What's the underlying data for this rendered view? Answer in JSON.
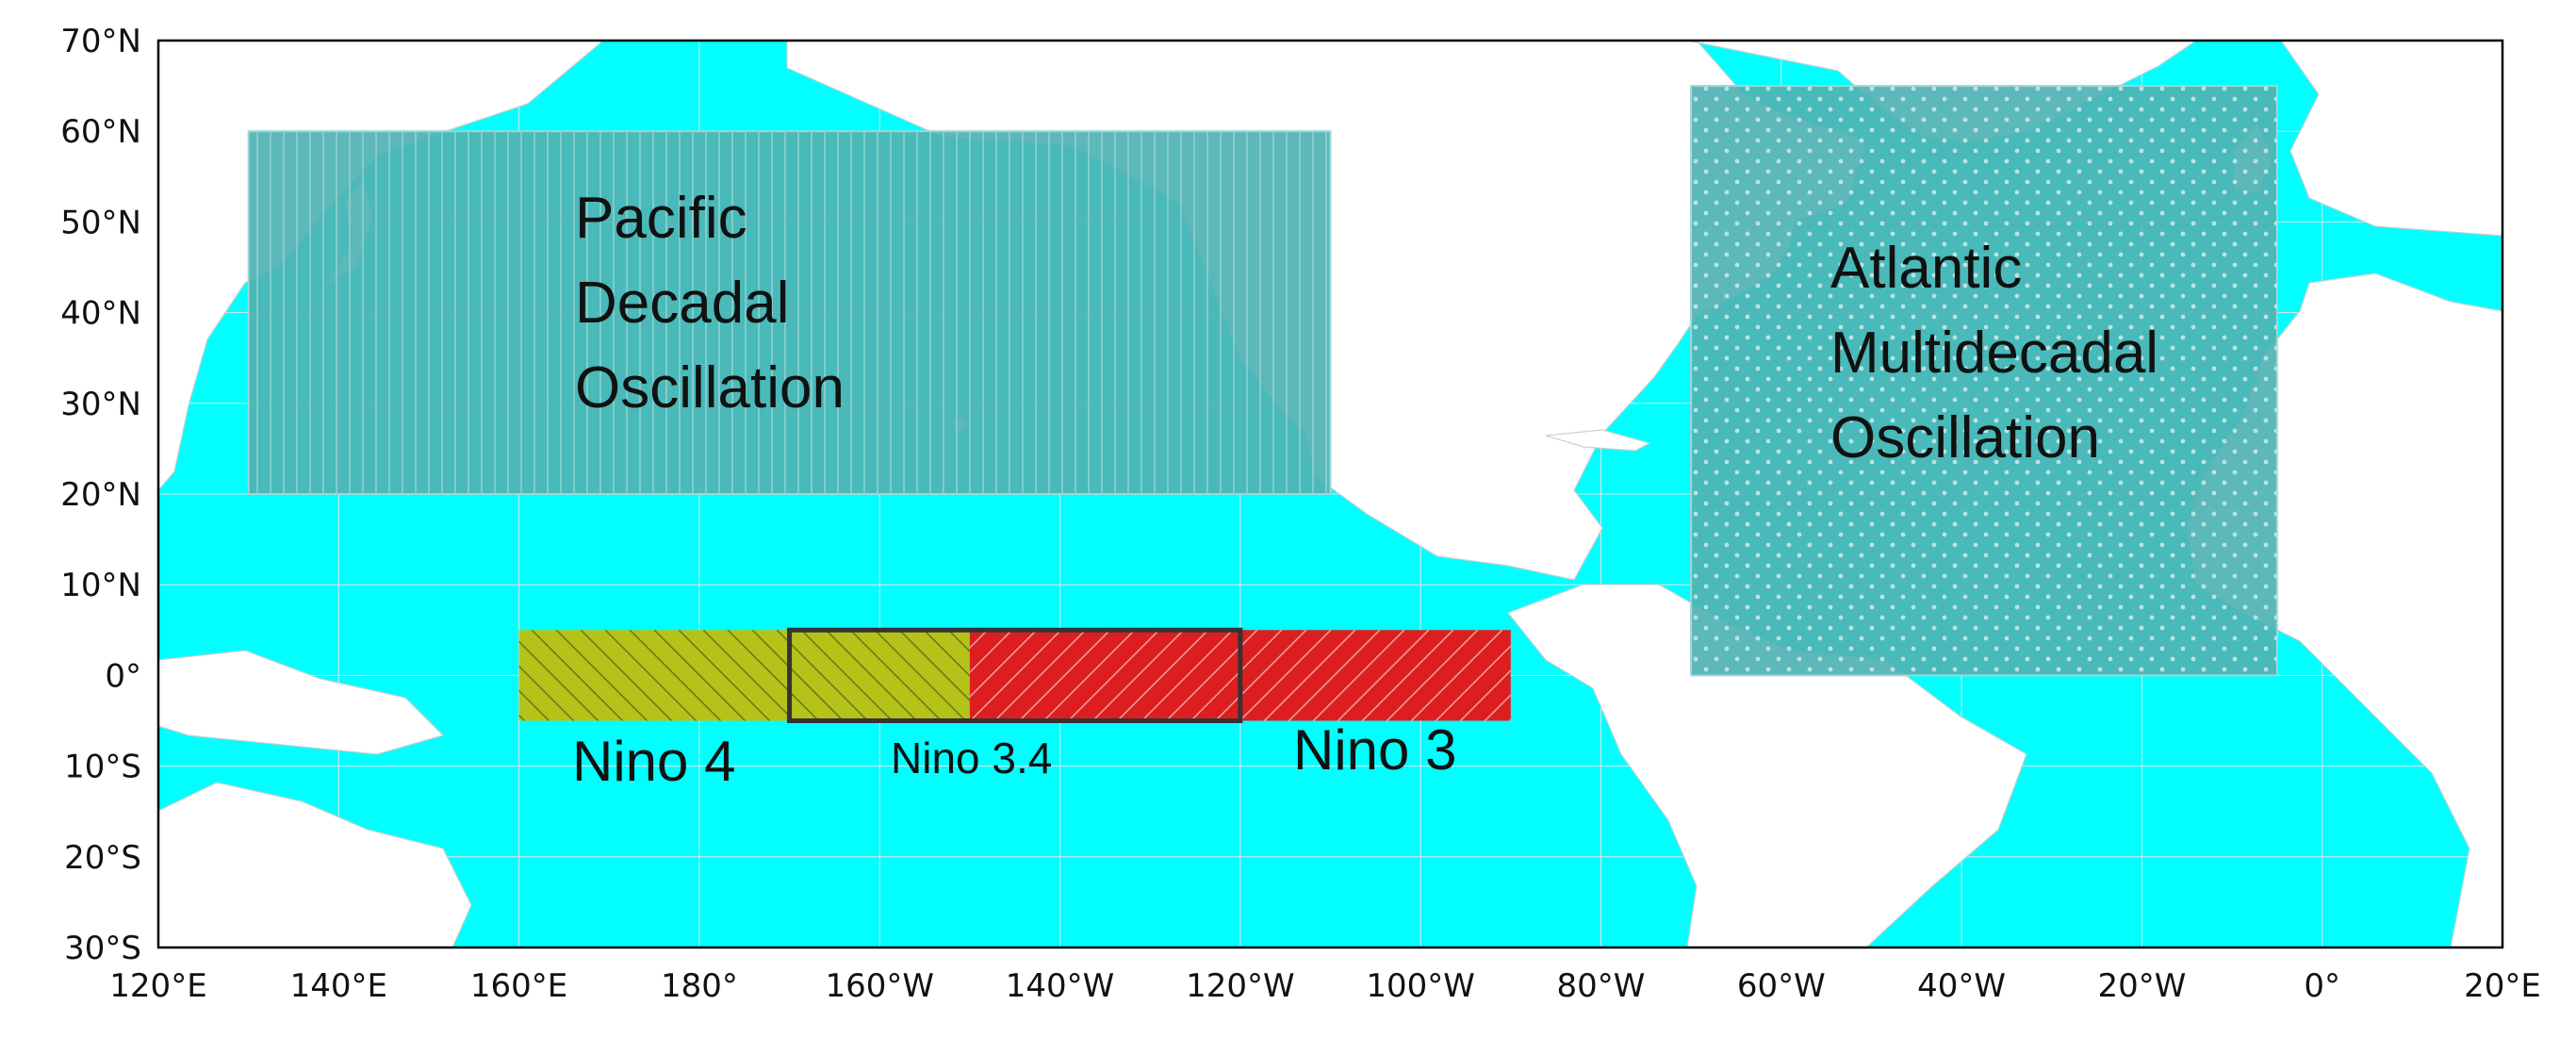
{
  "map": {
    "lon_range": [
      120,
      380
    ],
    "lat_range": [
      -30,
      70
    ],
    "colors": {
      "ocean": "#00ffff",
      "land": "#ffffff",
      "border": "#cfcfcf",
      "grid": "#e5e5e5",
      "pdo": "#4fb3b3",
      "amo": "#4fb3b3",
      "nino4": "#b5c21a",
      "nino3": "#dc1e1e",
      "nino34_outline": "#333333",
      "frame": "#000000"
    },
    "lon_ticks": [
      {
        "value": 120,
        "label": "120°E"
      },
      {
        "value": 140,
        "label": "140°E"
      },
      {
        "value": 160,
        "label": "160°E"
      },
      {
        "value": 180,
        "label": "180°"
      },
      {
        "value": 200,
        "label": "160°W"
      },
      {
        "value": 220,
        "label": "140°W"
      },
      {
        "value": 240,
        "label": "120°W"
      },
      {
        "value": 260,
        "label": "100°W"
      },
      {
        "value": 280,
        "label": "80°W"
      },
      {
        "value": 300,
        "label": "60°W"
      },
      {
        "value": 320,
        "label": "40°W"
      },
      {
        "value": 340,
        "label": "20°W"
      },
      {
        "value": 360,
        "label": "0°"
      },
      {
        "value": 380,
        "label": "20°E"
      }
    ],
    "lat_ticks": [
      {
        "value": 70,
        "label": "70°N"
      },
      {
        "value": 60,
        "label": "60°N"
      },
      {
        "value": 50,
        "label": "50°N"
      },
      {
        "value": 40,
        "label": "40°N"
      },
      {
        "value": 30,
        "label": "30°N"
      },
      {
        "value": 20,
        "label": "20°N"
      },
      {
        "value": 10,
        "label": "10°N"
      },
      {
        "value": 0,
        "label": "0°"
      },
      {
        "value": -10,
        "label": "10°S"
      },
      {
        "value": -20,
        "label": "20°S"
      },
      {
        "value": -30,
        "label": "30°S"
      }
    ],
    "regions": [
      {
        "id": "pdo",
        "lines": [
          "Pacific",
          "Decadal",
          "Oscillation"
        ],
        "lon": [
          130,
          250
        ],
        "lat": [
          20,
          60
        ],
        "pattern": "vertical-lines"
      },
      {
        "id": "amo",
        "lines": [
          "Atlantic",
          "Multidecadal",
          "Oscillation"
        ],
        "lon": [
          290,
          355
        ],
        "lat": [
          0,
          65
        ],
        "pattern": "dots"
      },
      {
        "id": "nino4",
        "lines": [
          "Nino 4"
        ],
        "lon": [
          160,
          210
        ],
        "lat": [
          -5,
          5
        ],
        "pattern": "backslash"
      },
      {
        "id": "nino3",
        "lines": [
          "Nino 3"
        ],
        "lon": [
          210,
          270
        ],
        "lat": [
          -5,
          5
        ],
        "pattern": "slash"
      },
      {
        "id": "nino34",
        "lines": [
          "Nino 3.4"
        ],
        "lon": [
          190,
          240
        ],
        "lat": [
          -5,
          5
        ],
        "pattern": "outline"
      }
    ]
  }
}
